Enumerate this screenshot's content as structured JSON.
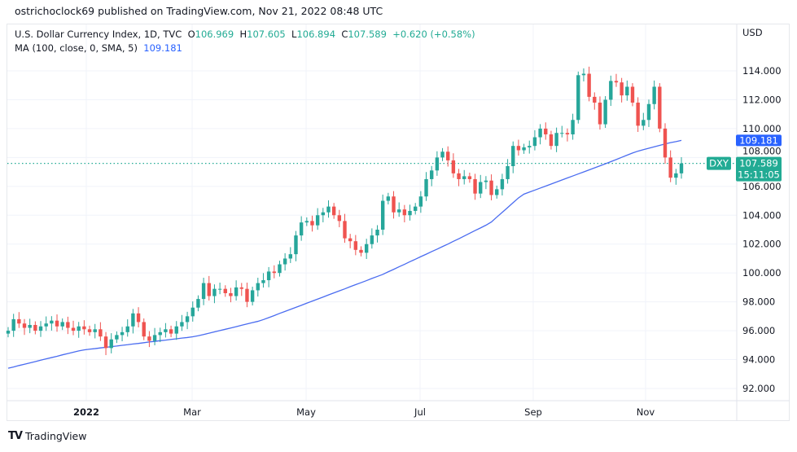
{
  "header": {
    "publish_line": "ostrichoclock69 published on TradingView.com, Nov 21, 2022 08:48 UTC"
  },
  "legend": {
    "symbol_line": "U.S. Dollar Currency Index, 1D, TVC",
    "open_label": "O",
    "open": "106.969",
    "high_label": "H",
    "high": "107.605",
    "low_label": "L",
    "low": "106.894",
    "close_label": "C",
    "close": "107.589",
    "change": "+0.620 (+0.58%)",
    "ma_line": "MA (100, close, 0, SMA, 5)",
    "ma_value": "109.181"
  },
  "axis": {
    "currency": "USD"
  },
  "price_tags": {
    "symbol": "DXY",
    "last_price": "107.589",
    "countdown": "15:11:05",
    "ma_price": "109.181"
  },
  "footer": {
    "brand": "TradingView",
    "logo_text": "TV"
  },
  "colors": {
    "up": "#26a69a",
    "down": "#ef5350",
    "ma": "#4a6cf0",
    "last_price": "#22ab94",
    "grid": "#f0f3fa"
  },
  "chart_data": {
    "type": "candlestick",
    "title": "U.S. Dollar Currency Index, 1D, TVC",
    "ylabel": "USD",
    "ylim": [
      91,
      116
    ],
    "y_ticks": [
      "92.000",
      "94.000",
      "96.000",
      "98.000",
      "100.000",
      "102.000",
      "104.000",
      "106.000",
      "108.000",
      "110.000",
      "112.000",
      "114.000"
    ],
    "x_ticks": [
      "2022",
      "Mar",
      "May",
      "Jul",
      "Sep",
      "Nov"
    ],
    "grid": true,
    "closes": [
      96.0,
      96.8,
      96.5,
      96.2,
      96.4,
      96.0,
      96.3,
      96.5,
      96.7,
      96.3,
      96.6,
      96.2,
      96.0,
      96.3,
      96.1,
      95.9,
      96.1,
      95.6,
      94.8,
      95.4,
      95.7,
      95.9,
      96.3,
      97.2,
      96.6,
      95.6,
      95.3,
      95.7,
      95.9,
      96.1,
      95.8,
      96.3,
      96.6,
      97.0,
      97.6,
      98.2,
      99.3,
      98.4,
      98.9,
      98.9,
      98.6,
      98.4,
      99.0,
      98.9,
      98.0,
      98.8,
      99.3,
      99.5,
      100.1,
      100.0,
      100.6,
      101.0,
      101.3,
      102.6,
      103.5,
      103.6,
      103.3,
      104.0,
      104.2,
      104.6,
      104.0,
      103.6,
      102.4,
      102.2,
      101.6,
      101.4,
      102.0,
      102.6,
      103.0,
      105.0,
      105.3,
      104.2,
      104.4,
      104.0,
      104.3,
      104.6,
      105.3,
      106.5,
      107.1,
      108.0,
      108.4,
      107.8,
      106.9,
      106.5,
      106.7,
      106.5,
      105.5,
      106.3,
      106.4,
      105.4,
      105.8,
      106.5,
      107.4,
      108.8,
      108.5,
      108.7,
      108.8,
      109.4,
      110.0,
      109.6,
      108.8,
      109.7,
      109.7,
      109.6,
      110.6,
      113.7,
      113.8,
      112.2,
      111.8,
      110.3,
      112.0,
      113.3,
      113.2,
      112.3,
      112.9,
      111.8,
      110.2,
      110.6,
      111.7,
      112.9,
      110.0,
      108.0,
      106.6,
      106.9,
      107.589
    ],
    "ma_series": {
      "name": "MA (100, close, 0, SMA, 5)",
      "values": [
        93.4,
        93.49,
        93.59,
        93.68,
        93.77,
        93.86,
        93.96,
        94.05,
        94.14,
        94.23,
        94.33,
        94.42,
        94.51,
        94.6,
        94.67,
        94.72,
        94.76,
        94.81,
        94.85,
        94.9,
        94.94,
        94.99,
        95.03,
        95.08,
        95.12,
        95.17,
        95.22,
        95.26,
        95.31,
        95.35,
        95.4,
        95.44,
        95.49,
        95.53,
        95.58,
        95.65,
        95.74,
        95.83,
        95.92,
        96.01,
        96.1,
        96.19,
        96.28,
        96.38,
        96.47,
        96.56,
        96.65,
        96.77,
        96.91,
        97.05,
        97.2,
        97.34,
        97.48,
        97.62,
        97.76,
        97.91,
        98.05,
        98.19,
        98.33,
        98.48,
        98.62,
        98.76,
        98.9,
        99.05,
        99.19,
        99.33,
        99.47,
        99.62,
        99.76,
        99.9,
        100.08,
        100.25,
        100.43,
        100.6,
        100.78,
        100.95,
        101.13,
        101.3,
        101.48,
        101.65,
        101.83,
        102.0,
        102.19,
        102.37,
        102.56,
        102.75,
        102.94,
        103.12,
        103.31,
        103.53,
        103.87,
        104.2,
        104.53,
        104.87,
        105.2,
        105.46,
        105.6,
        105.74,
        105.88,
        106.02,
        106.16,
        106.3,
        106.44,
        106.58,
        106.72,
        106.86,
        107.0,
        107.14,
        107.28,
        107.42,
        107.56,
        107.71,
        107.86,
        108.01,
        108.16,
        108.31,
        108.44,
        108.54,
        108.64,
        108.74,
        108.84,
        108.94,
        109.03,
        109.1,
        109.181
      ]
    },
    "last_price": 107.589
  }
}
